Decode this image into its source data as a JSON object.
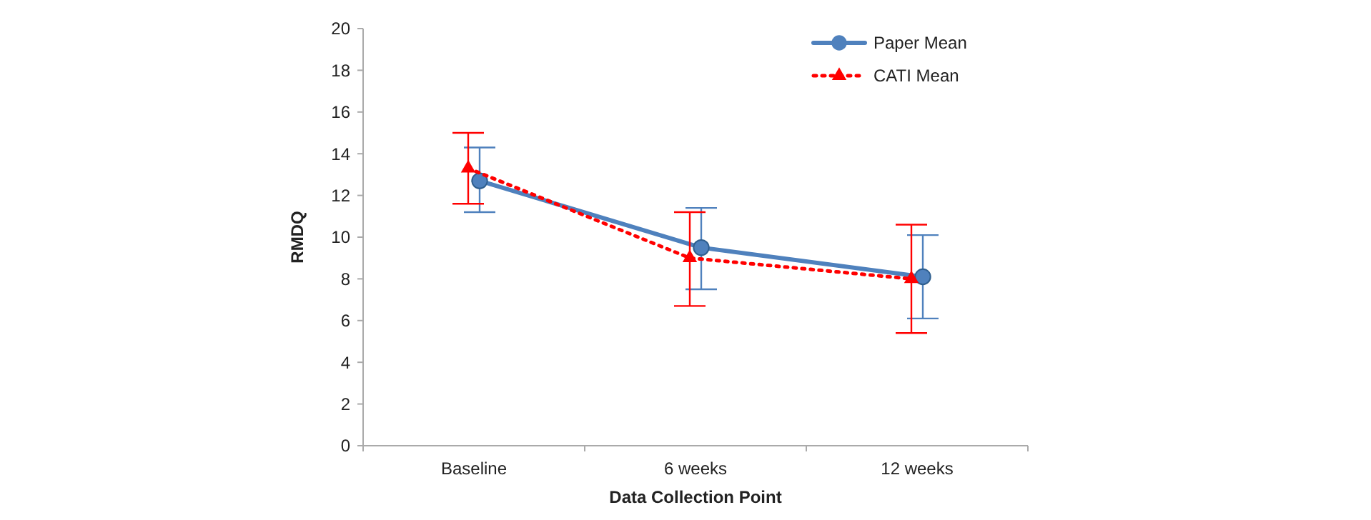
{
  "chart_data": {
    "type": "line",
    "xlabel": "Data Collection Point",
    "ylabel": "RMDQ",
    "categories": [
      "Baseline",
      "6 weeks",
      "12 weeks"
    ],
    "ylim": [
      0,
      20
    ],
    "yticks": [
      0,
      2,
      4,
      6,
      8,
      10,
      12,
      14,
      16,
      18,
      20
    ],
    "grid": false,
    "legend": "top right",
    "series": [
      {
        "name": "Paper Mean",
        "color": "#4f81bd",
        "values": [
          12.7,
          9.5,
          8.1
        ],
        "errors": [
          [
            11.2,
            14.3
          ],
          [
            7.5,
            11.4
          ],
          [
            6.1,
            10.1
          ]
        ],
        "marker": "circle",
        "line_style": "solid"
      },
      {
        "name": "CATI Mean",
        "color": "#ff0000",
        "values": [
          13.3,
          9.0,
          8.0
        ],
        "errors": [
          [
            11.6,
            15.0
          ],
          [
            6.7,
            11.2
          ],
          [
            5.4,
            10.6
          ]
        ],
        "marker": "triangle",
        "line_style": "dotted"
      }
    ]
  }
}
